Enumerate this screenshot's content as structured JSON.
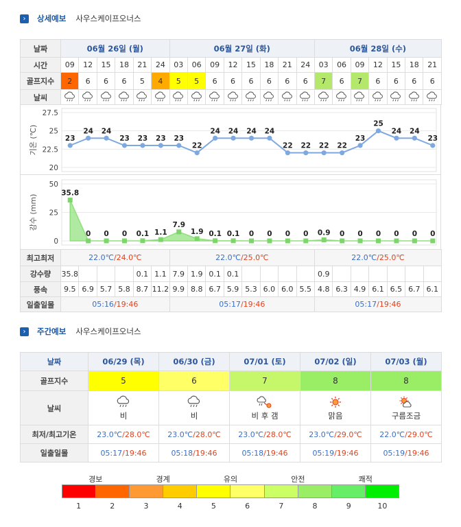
{
  "detail": {
    "title": "상세예보",
    "place": "사우스케이프오너스",
    "labels": {
      "date": "날짜",
      "time": "시간",
      "golf": "골프지수",
      "weather": "날씨",
      "temp_axis": "기온 (℃)",
      "rain_axis": "강수 (mm)",
      "minmax": "최고최저",
      "rain": "강수량",
      "wind": "풍속",
      "sun": "일출일몰"
    },
    "days": [
      {
        "label": "06월 26일 (월)",
        "min": "22.0℃",
        "max": "/24.0℃",
        "sunrise": "05:16",
        "sunset": "/19:46"
      },
      {
        "label": "06월 27일 (화)",
        "min": "22.0℃",
        "max": "/25.0℃",
        "sunrise": "05:17",
        "sunset": "/19:46"
      },
      {
        "label": "06월 28일 (수)",
        "min": "22.0℃",
        "max": "/25.0℃",
        "sunrise": "05:17",
        "sunset": "/19:46"
      }
    ],
    "hours": [
      "09",
      "12",
      "15",
      "18",
      "21",
      "24",
      "03",
      "06",
      "09",
      "12",
      "15",
      "18",
      "21",
      "24",
      "03",
      "06",
      "09",
      "12",
      "15",
      "18",
      "21"
    ],
    "golf_index": [
      "2",
      "6",
      "6",
      "6",
      "5",
      "4",
      "5",
      "5",
      "6",
      "6",
      "6",
      "6",
      "6",
      "6",
      "7",
      "6",
      "7",
      "6",
      "6",
      "6",
      "6"
    ],
    "golf_colors": [
      "#ff6600",
      "#ffffff",
      "#ffffff",
      "#ffffff",
      "#ffffff",
      "#ffaa00",
      "#ffff00",
      "#ffff00",
      "#ffffff",
      "#ffffff",
      "#ffffff",
      "#ffffff",
      "#ffffff",
      "#ffffff",
      "#b3e86b",
      "#ffffff",
      "#b3e86b",
      "#ffffff",
      "#ffffff",
      "#ffffff",
      "#ffffff"
    ],
    "weather_icons": [
      "rain-cloud-icon",
      "rain-cloud-icon",
      "rain-cloud-icon",
      "rain-cloud-icon",
      "rain-cloud-icon",
      "rain-cloud-icon",
      "rain-cloud-icon",
      "rain-cloud-icon",
      "rain-cloud-icon",
      "rain-cloud-icon",
      "rain-cloud-icon",
      "rain-cloud-icon",
      "rain-cloud-icon",
      "rain-cloud-icon",
      "rain-cloud-icon",
      "rain-cloud-icon",
      "rain-cloud-icon",
      "rain-cloud-icon",
      "rain-cloud-icon",
      "rain-cloud-icon",
      "rain-cloud-icon"
    ],
    "rain_amount": [
      "35.8",
      "",
      "",
      "",
      "0.1",
      "1.1",
      "7.9",
      "1.9",
      "0.1",
      "0.1",
      "",
      "",
      "",
      "",
      "0.9",
      "",
      "",
      "",
      "",
      "",
      ""
    ],
    "wind": [
      "9.5",
      "6.9",
      "5.7",
      "5.8",
      "8.7",
      "11.2",
      "9.9",
      "8.8",
      "6.7",
      "5.9",
      "5.3",
      "6.0",
      "6.0",
      "5.5",
      "4.8",
      "6.3",
      "4.9",
      "6.1",
      "6.5",
      "6.7",
      "6.1"
    ]
  },
  "chart_data": [
    {
      "type": "line",
      "x": [
        "09",
        "12",
        "15",
        "18",
        "21",
        "24",
        "03",
        "06",
        "09",
        "12",
        "15",
        "18",
        "21",
        "24",
        "03",
        "06",
        "09",
        "12",
        "15",
        "18",
        "21"
      ],
      "values": [
        23,
        24,
        24,
        23,
        23,
        23,
        23,
        22,
        24,
        24,
        24,
        24,
        22,
        22,
        22,
        22,
        23,
        25,
        24,
        24,
        23
      ],
      "value_labels": [
        "23",
        "24",
        "24",
        "23",
        "23",
        "23",
        "23",
        "22",
        "24",
        "24",
        "24",
        "24",
        "22",
        "22",
        "22",
        "22",
        "23",
        "25",
        "24",
        "24",
        "23"
      ],
      "ylabel": "기온 (℃)",
      "ylim": [
        20,
        27.5
      ],
      "yticks": [
        "27.5",
        "25",
        "22.5",
        "20"
      ],
      "ytick_values": [
        27.5,
        25,
        22.5,
        20
      ],
      "color": "#7ea8e0",
      "grid": true
    },
    {
      "type": "area",
      "x": [
        "09",
        "12",
        "15",
        "18",
        "21",
        "24",
        "03",
        "06",
        "09",
        "12",
        "15",
        "18",
        "21",
        "24",
        "03",
        "06",
        "09",
        "12",
        "15",
        "18",
        "21"
      ],
      "values": [
        35.8,
        0,
        0,
        0,
        0.1,
        1.1,
        7.9,
        1.9,
        0.1,
        0.1,
        0,
        0,
        0,
        0,
        0.9,
        0,
        0,
        0,
        0,
        0,
        0
      ],
      "value_labels": [
        "35.8",
        "0",
        "0",
        "0",
        "0.1",
        "1.1",
        "7.9",
        "1.9",
        "0.1",
        "0.1",
        "0",
        "0",
        "0",
        "0",
        "0.9",
        "0",
        "0",
        "0",
        "0",
        "0",
        "0"
      ],
      "ylabel": "강수 (mm)",
      "ylim": [
        0,
        50
      ],
      "yticks": [
        "50",
        "25",
        "0"
      ],
      "ytick_values": [
        50,
        25,
        0
      ],
      "color": "#8fe07a",
      "grid": true
    }
  ],
  "weekly": {
    "title": "주간예보",
    "place": "사우스케이프오너스",
    "labels": {
      "date": "날짜",
      "golf": "골프지수",
      "weather": "날씨",
      "minmax": "최저/최고기온",
      "sun": "일출일몰"
    },
    "days": [
      {
        "date": "06/29 (목)",
        "golf": "5",
        "golf_color": "#ffff00",
        "icon": "rain-cloud-icon",
        "weather": "비",
        "min": "23.0℃",
        "max": "/28.0℃",
        "sunrise": "05:17",
        "sunset": "/19:46"
      },
      {
        "date": "06/30 (금)",
        "golf": "6",
        "golf_color": "#ffff66",
        "icon": "rain-cloud-icon",
        "weather": "비",
        "min": "23.0℃",
        "max": "/28.0℃",
        "sunrise": "05:18",
        "sunset": "/19:46"
      },
      {
        "date": "07/01 (토)",
        "golf": "7",
        "golf_color": "#c6f76b",
        "icon": "rain-then-sun-icon",
        "weather": "비 후 갬",
        "min": "23.0℃",
        "max": "/28.0℃",
        "sunrise": "05:18",
        "sunset": "/19:46"
      },
      {
        "date": "07/02 (일)",
        "golf": "8",
        "golf_color": "#99ee66",
        "icon": "sun-icon",
        "weather": "맑음",
        "min": "23.0℃",
        "max": "/29.0℃",
        "sunrise": "05:19",
        "sunset": "/19:46"
      },
      {
        "date": "07/03 (월)",
        "golf": "8",
        "golf_color": "#99ee66",
        "icon": "sun-cloud-icon",
        "weather": "구름조금",
        "min": "22.0℃",
        "max": "/29.0℃",
        "sunrise": "05:19",
        "sunset": "/19:46"
      }
    ]
  },
  "legend": {
    "categories": [
      "경보",
      "경계",
      "유의",
      "안전",
      "쾌적"
    ],
    "numbers": [
      "1",
      "2",
      "3",
      "4",
      "5",
      "6",
      "7",
      "8",
      "9",
      "10"
    ],
    "colors": [
      "#ff0000",
      "#ff6600",
      "#ff9933",
      "#ffcc00",
      "#ffff00",
      "#ffff66",
      "#ccff66",
      "#99ee66",
      "#66ee66",
      "#00ee00"
    ]
  }
}
